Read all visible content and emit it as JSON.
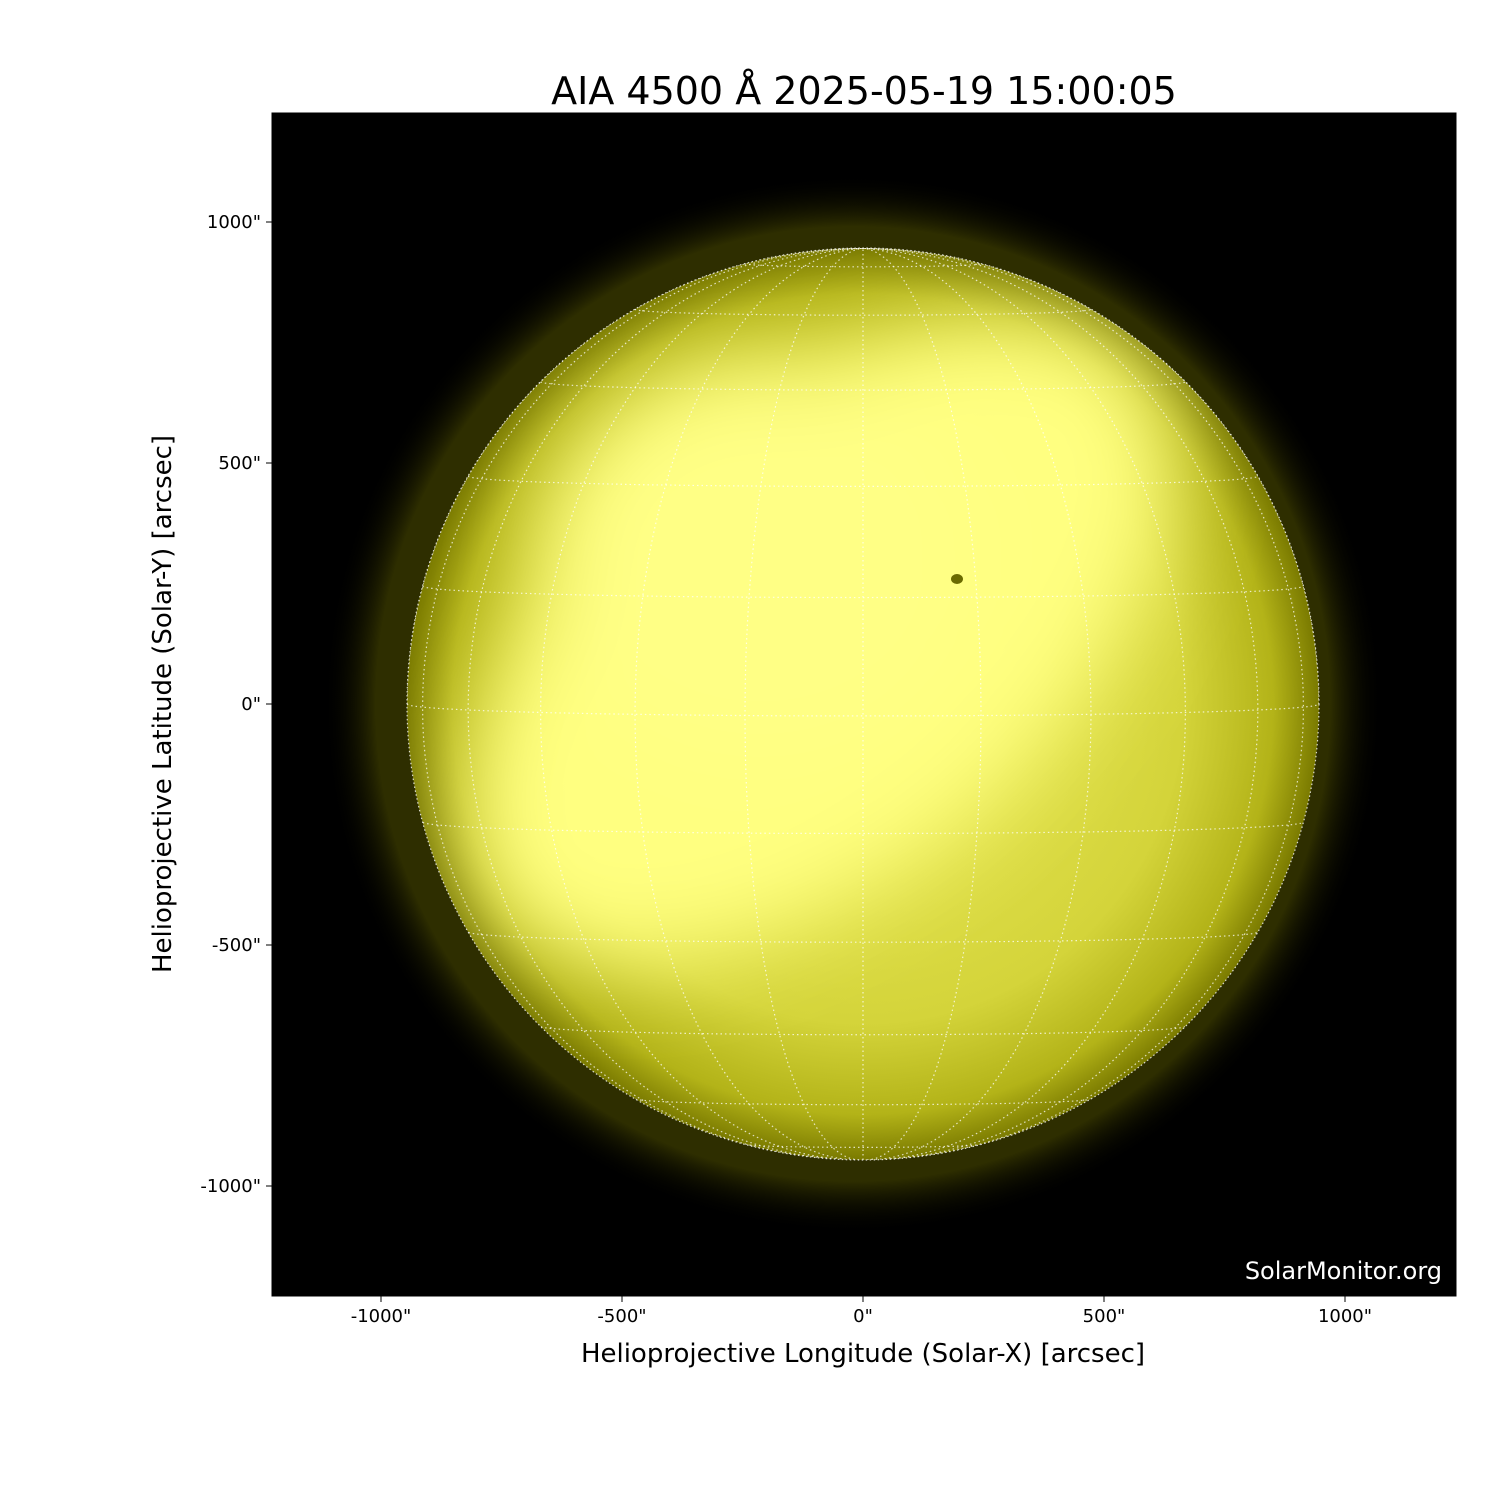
{
  "chart_data": {
    "type": "heatmap",
    "title": "AIA 4500 Å 2025-05-19 15:00:05",
    "xlabel": "Helioprojective Longitude (Solar-X) [arcsec]",
    "ylabel": "Helioprojective Latitude (Solar-Y) [arcsec]",
    "xlim": [
      -1225,
      1225
    ],
    "ylim": [
      -1225,
      1225
    ],
    "x_ticks": [
      {
        "value": -1000,
        "label": "-1000\""
      },
      {
        "value": -500,
        "label": "-500\""
      },
      {
        "value": 0,
        "label": "0\""
      },
      {
        "value": 500,
        "label": "500\""
      },
      {
        "value": 1000,
        "label": "1000\""
      }
    ],
    "y_ticks": [
      {
        "value": 1000,
        "label": "1000\""
      },
      {
        "value": 500,
        "label": "500\""
      },
      {
        "value": 0,
        "label": "0\""
      },
      {
        "value": -500,
        "label": "-500\""
      },
      {
        "value": -1000,
        "label": "-1000\""
      }
    ],
    "solar_radius_arcsec": 946,
    "grid": "heliographic, 15° spacing, white dotted",
    "colormap": "black to yellow",
    "colors": {
      "background": "#000000",
      "disk_dark": "#8a8a00",
      "disk_bright": "#ffff80",
      "grid": "#ffffff"
    },
    "watermark": "SolarMonitor.org"
  }
}
